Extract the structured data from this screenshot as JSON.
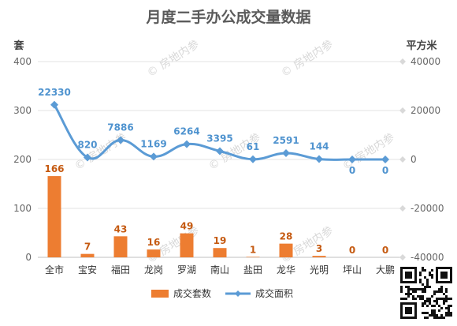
{
  "chart_data": {
    "type": "bar",
    "title": "月度二手办公成交量数据",
    "categories": [
      "全市",
      "宝安",
      "福田",
      "龙岗",
      "罗湖",
      "南山",
      "盐田",
      "龙华",
      "光明",
      "坪山",
      "大鹏"
    ],
    "left_axis": {
      "unit": "套",
      "ylim": [
        0,
        400
      ],
      "ticks": [
        0,
        100,
        200,
        300,
        400
      ]
    },
    "right_axis": {
      "unit": "平方米",
      "ylim": [
        -40000,
        40000
      ],
      "ticks": [
        -40000,
        -20000,
        0,
        20000,
        40000
      ]
    },
    "series": [
      {
        "name": "成交套数",
        "type": "bar",
        "axis": "left",
        "color": "#ed7d31",
        "values": [
          166,
          7,
          43,
          16,
          49,
          19,
          1,
          28,
          3,
          0,
          0
        ]
      },
      {
        "name": "成交面积",
        "type": "line",
        "axis": "right",
        "color": "#5b9bd5",
        "values": [
          22330,
          820,
          7886,
          1169,
          6264,
          3395,
          61,
          2591,
          144,
          0,
          0
        ]
      }
    ],
    "grid": true,
    "legend_position": "bottom"
  },
  "watermark": "房地内参"
}
